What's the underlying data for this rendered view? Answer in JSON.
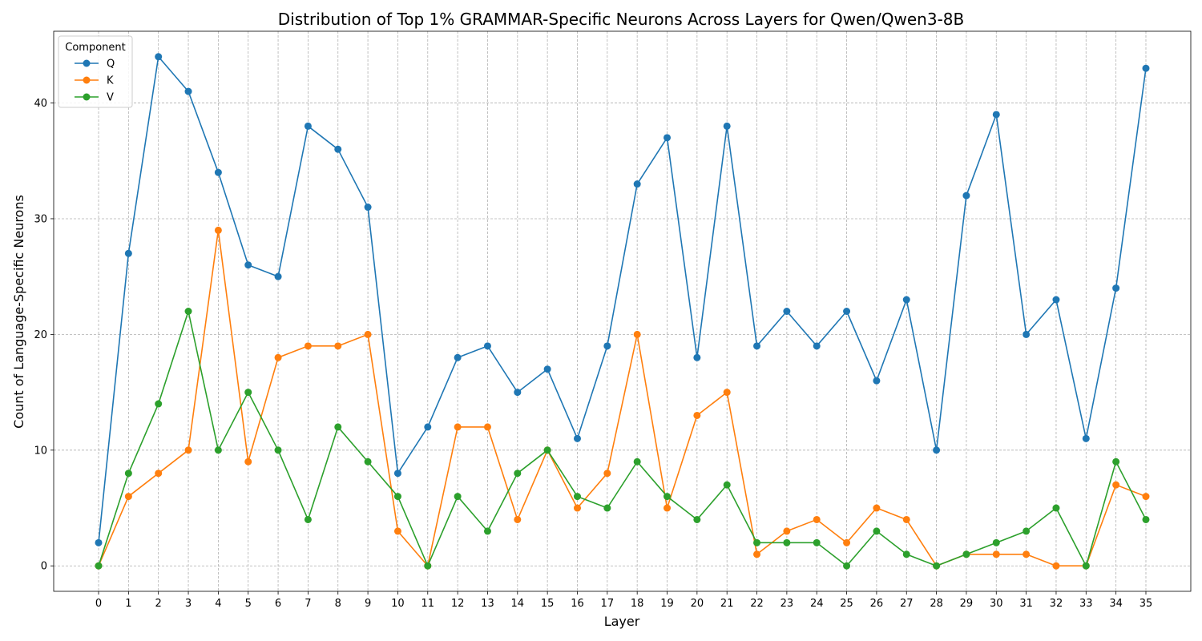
{
  "chart_data": {
    "type": "line",
    "title": "Distribution of Top 1% GRAMMAR-Specific Neurons Across Layers for Qwen/Qwen3-8B",
    "xlabel": "Layer",
    "ylabel": "Count of Language-Specific Neurons",
    "x": [
      0,
      1,
      2,
      3,
      4,
      5,
      6,
      7,
      8,
      9,
      10,
      11,
      12,
      13,
      14,
      15,
      16,
      17,
      18,
      19,
      20,
      21,
      22,
      23,
      24,
      25,
      26,
      27,
      28,
      29,
      30,
      31,
      32,
      33,
      34,
      35
    ],
    "xlim": [
      -1.5,
      36.5
    ],
    "ylim": [
      -2.2,
      46.2
    ],
    "yticks": [
      0,
      10,
      20,
      30,
      40
    ],
    "grid": true,
    "legend": {
      "title": "Component",
      "placement": "top-left"
    },
    "series": [
      {
        "name": "Q",
        "color": "#1f77b4",
        "values": [
          2,
          27,
          44,
          41,
          34,
          26,
          25,
          38,
          36,
          31,
          8,
          12,
          18,
          19,
          15,
          17,
          11,
          19,
          33,
          37,
          18,
          38,
          19,
          22,
          19,
          22,
          16,
          23,
          10,
          32,
          39,
          20,
          23,
          11,
          24,
          43
        ]
      },
      {
        "name": "K",
        "color": "#ff7f0e",
        "values": [
          0,
          6,
          8,
          10,
          29,
          9,
          18,
          19,
          19,
          20,
          3,
          0,
          12,
          12,
          4,
          10,
          5,
          8,
          20,
          5,
          13,
          15,
          1,
          3,
          4,
          2,
          5,
          4,
          0,
          1,
          1,
          1,
          0,
          0,
          7,
          6
        ]
      },
      {
        "name": "V",
        "color": "#2ca02c",
        "values": [
          0,
          8,
          14,
          22,
          10,
          15,
          10,
          4,
          12,
          9,
          6,
          0,
          6,
          3,
          8,
          10,
          6,
          5,
          9,
          6,
          4,
          7,
          2,
          2,
          2,
          0,
          3,
          1,
          0,
          1,
          2,
          3,
          5,
          0,
          9,
          4
        ]
      }
    ]
  }
}
